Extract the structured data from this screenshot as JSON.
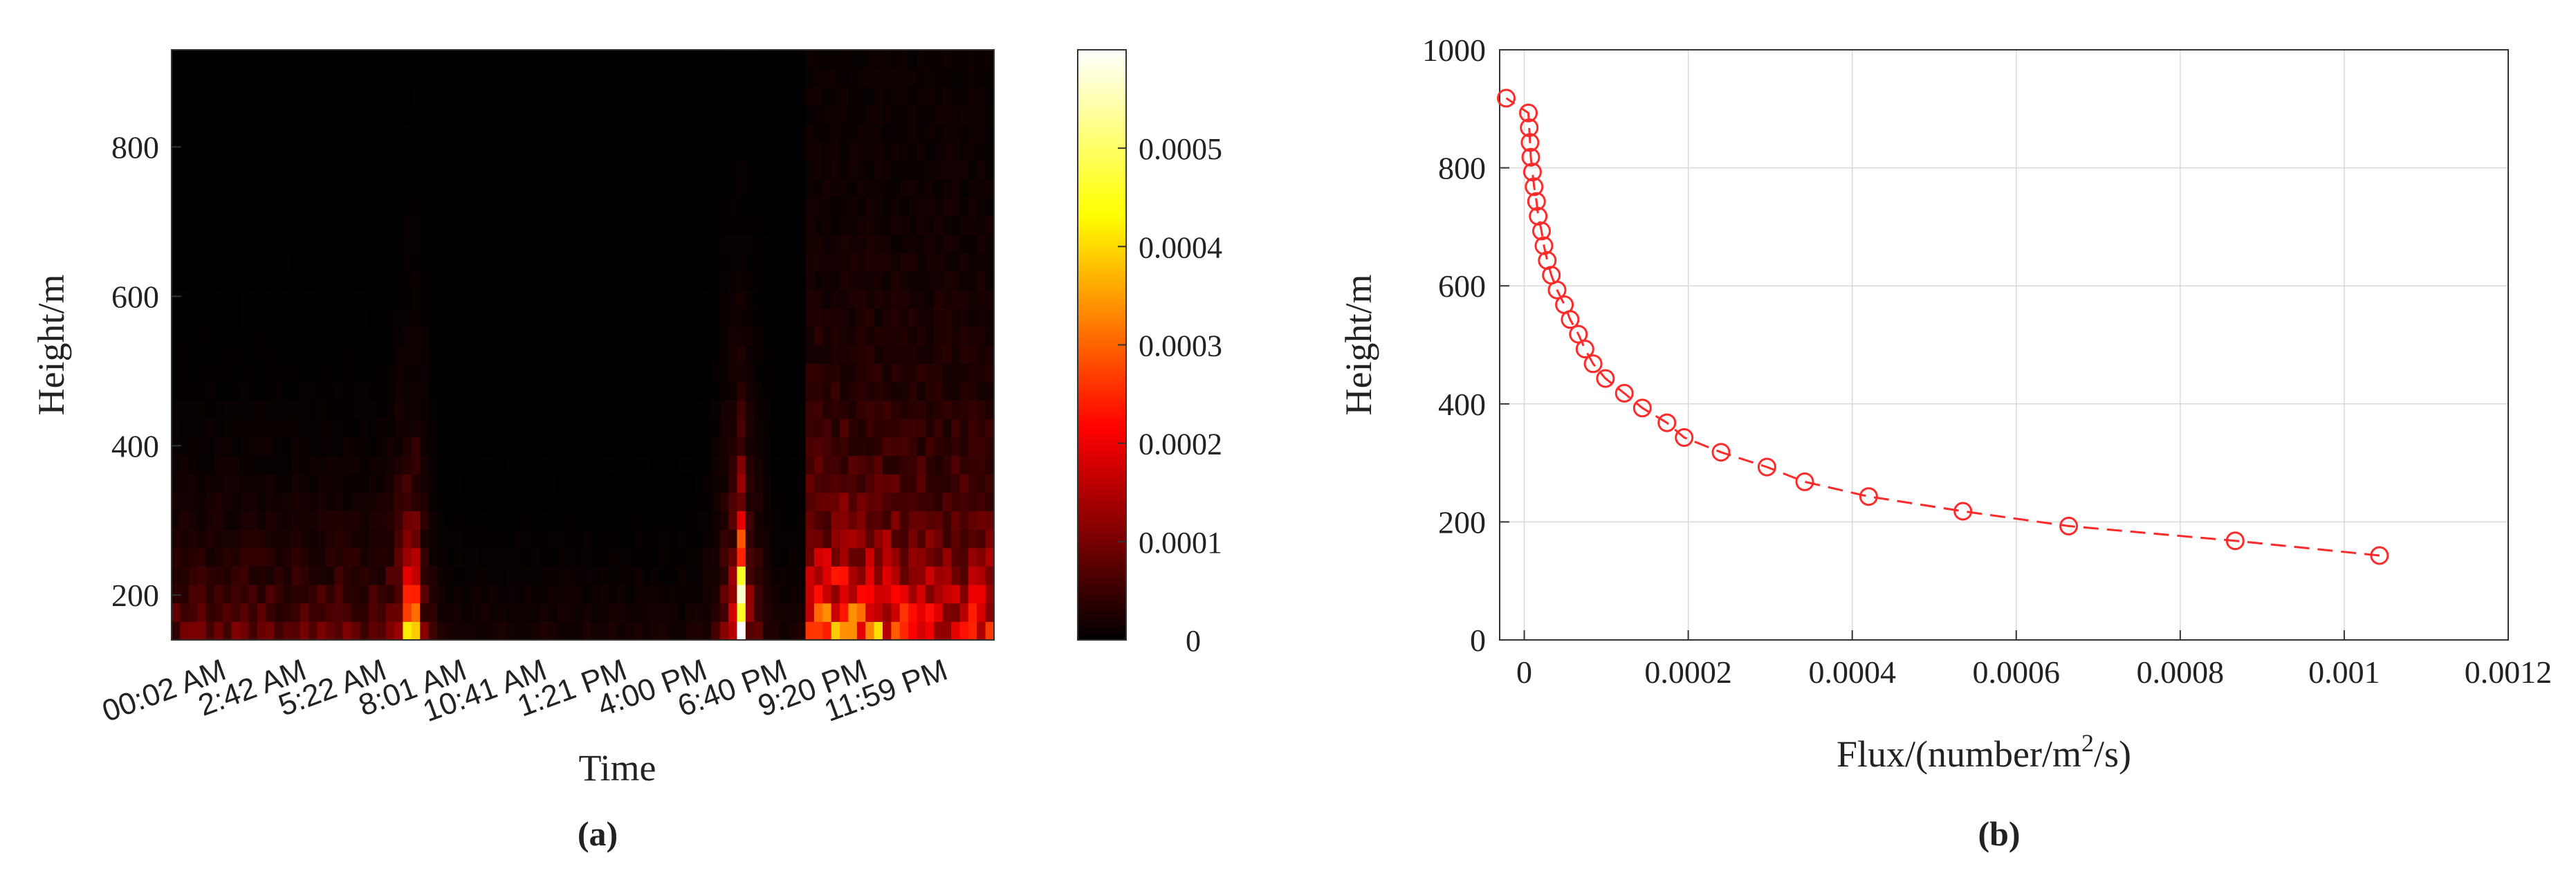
{
  "chart_data": [
    {
      "type": "heatmap",
      "panel_label": "(a)",
      "xlabel": "Time",
      "ylabel": "Height/m",
      "x_tick_labels": [
        "00:02 AM",
        "2:42 AM",
        "5:22 AM",
        "8:01 AM",
        "10:41 AM",
        "1:21 PM",
        "4:00 PM",
        "6:40 PM",
        "9:20 PM",
        "11:59 PM"
      ],
      "y_ticks": [
        200,
        400,
        600,
        800
      ],
      "ylim": [
        140,
        930
      ],
      "colorbar": {
        "range": [
          0,
          0.0006
        ],
        "tick_values": [
          0,
          0.0001,
          0.0002,
          0.0003,
          0.0004,
          0.0005
        ],
        "tick_labels": [
          "0",
          "0.0001",
          "0.0002",
          "0.0003",
          "0.0004",
          "0.0005"
        ],
        "colormap": "hot"
      },
      "n_time_bins": 96,
      "n_height_bins": 32,
      "hotspots": [
        {
          "time": "8:01 AM",
          "height_top": 400,
          "peak": 0.0005
        },
        {
          "time": "6:40 PM",
          "height_top": 350,
          "peak": 0.0006
        },
        {
          "time": "9:20 PM",
          "height_top": 300,
          "peak": 0.0004
        }
      ]
    },
    {
      "type": "line",
      "panel_label": "(b)",
      "xlabel": "Flux/(number/m",
      "xlabel_sup": "2",
      "xlabel_tail": "/s)",
      "ylabel": "Height/m",
      "xlim": [
        -3e-05,
        0.0012
      ],
      "ylim": [
        0,
        1000
      ],
      "x_ticks": [
        0,
        0.0002,
        0.0004,
        0.0006,
        0.0008,
        0.001,
        0.0012
      ],
      "x_tick_labels": [
        "0",
        "0.0002",
        "0.0004",
        "0.0006",
        "0.0008",
        "0.001",
        "0.0012"
      ],
      "y_ticks": [
        0,
        200,
        400,
        600,
        800,
        1000
      ],
      "grid": true,
      "line_style": "dashed",
      "marker": "circle",
      "color": "#ff2a2a",
      "points": [
        {
          "x": 0.001043,
          "y": 143
        },
        {
          "x": 0.000867,
          "y": 168
        },
        {
          "x": 0.000664,
          "y": 193
        },
        {
          "x": 0.000535,
          "y": 218
        },
        {
          "x": 0.00042,
          "y": 243
        },
        {
          "x": 0.000342,
          "y": 268
        },
        {
          "x": 0.000296,
          "y": 293
        },
        {
          "x": 0.00024,
          "y": 318
        },
        {
          "x": 0.000195,
          "y": 343
        },
        {
          "x": 0.000174,
          "y": 368
        },
        {
          "x": 0.000144,
          "y": 393
        },
        {
          "x": 0.000122,
          "y": 418
        },
        {
          "x": 9.9e-05,
          "y": 443
        },
        {
          "x": 8.4e-05,
          "y": 468
        },
        {
          "x": 7.4e-05,
          "y": 493
        },
        {
          "x": 6.6e-05,
          "y": 518
        },
        {
          "x": 5.6e-05,
          "y": 543
        },
        {
          "x": 4.9e-05,
          "y": 568
        },
        {
          "x": 4e-05,
          "y": 593
        },
        {
          "x": 3.3e-05,
          "y": 618
        },
        {
          "x": 2.8e-05,
          "y": 643
        },
        {
          "x": 2.4e-05,
          "y": 668
        },
        {
          "x": 2.1e-05,
          "y": 693
        },
        {
          "x": 1.7e-05,
          "y": 718
        },
        {
          "x": 1.5e-05,
          "y": 743
        },
        {
          "x": 1.2e-05,
          "y": 768
        },
        {
          "x": 1e-05,
          "y": 793
        },
        {
          "x": 8e-06,
          "y": 818
        },
        {
          "x": 7e-06,
          "y": 843
        },
        {
          "x": 6e-06,
          "y": 868
        },
        {
          "x": 5e-06,
          "y": 893
        },
        {
          "x": -2.2e-05,
          "y": 918
        }
      ]
    }
  ]
}
